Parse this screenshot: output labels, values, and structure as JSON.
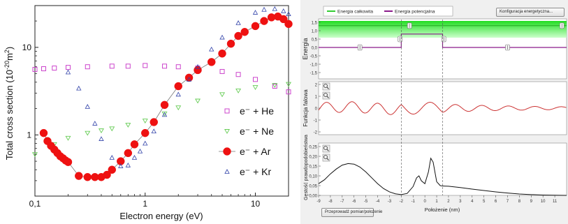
{
  "left_panel": {
    "ylabel": "Total cross section (10",
    "ylabel_exp": "-20",
    "ylabel_unit": "m",
    "ylabel_unit_exp": "2",
    "ylabel_close": ")",
    "xlabel": "Electron energy (eV)",
    "yticks": [
      "1",
      "10"
    ],
    "xticks": [
      "0,1",
      "1",
      "10"
    ]
  },
  "right_panel": {
    "legend": [
      {
        "label": "Energia całkowita",
        "color": "#33cc33"
      },
      {
        "label": "Energia potencjalna",
        "color": "#8b1a8b"
      }
    ],
    "config_button": "Konfiguracja energetyczna...",
    "measure_button": "Przeprowadź pomiar/położenie",
    "panel1": {
      "ylabel": "Energia",
      "yticks": [
        "1,5",
        "1,0",
        "0,5",
        "0,0",
        "-0,5",
        "-1,0",
        "-1,5"
      ]
    },
    "panel2": {
      "ylabel": "Funkcja falowa",
      "yticks": [
        "2",
        "1",
        "0",
        "-1",
        "-2"
      ]
    },
    "panel3": {
      "ylabel": "Gęstość prawdopodobieństwa",
      "yticks": [
        "0,25",
        "0,20",
        "0,15",
        "0,10",
        "0,05",
        "0,00"
      ]
    },
    "xticks": [
      "-9",
      "-8",
      "-7",
      "-6",
      "-5",
      "-4",
      "-3",
      "-2",
      "-1",
      "0",
      "1",
      "2",
      "3",
      "4",
      "5",
      "6",
      "7",
      "8",
      "9",
      "10",
      "11"
    ],
    "xlabel": "Położenie (nm)"
  },
  "chart_data": [
    {
      "type": "scatter",
      "title": "",
      "xlabel": "Electron energy (eV)",
      "ylabel": "Total cross section (10^-20 m^2)",
      "xscale": "log",
      "yscale": "log",
      "xlim": [
        0.1,
        20
      ],
      "ylim": [
        0.2,
        30
      ],
      "legend_position": "right",
      "series": [
        {
          "name": "e⁻ + He",
          "marker": "square",
          "color": "#cc44cc",
          "x": [
            0.1,
            0.12,
            0.15,
            0.2,
            0.3,
            0.5,
            0.7,
            1.0,
            1.5,
            2.0,
            3.0,
            5.0,
            7.0,
            10.0,
            15.0,
            20.0
          ],
          "y": [
            5.6,
            5.7,
            5.8,
            5.9,
            6.0,
            6.1,
            6.1,
            6.2,
            6.1,
            6.0,
            5.8,
            5.3,
            4.9,
            4.3,
            3.6,
            3.1
          ]
        },
        {
          "name": "e⁻ + Ne",
          "marker": "triangle-down",
          "color": "#66cc55",
          "x": [
            0.1,
            0.15,
            0.2,
            0.3,
            0.4,
            0.5,
            0.7,
            1.0,
            1.5,
            2.0,
            3.0,
            5.0,
            7.0,
            10.0,
            15.0,
            20.0
          ],
          "y": [
            0.6,
            0.78,
            0.92,
            1.05,
            1.12,
            1.18,
            1.3,
            1.45,
            1.75,
            2.05,
            2.45,
            2.9,
            3.2,
            3.5,
            3.7,
            3.8
          ]
        },
        {
          "name": "e⁻ + Ar",
          "marker": "circle",
          "color": "#ee1111",
          "line": true,
          "x": [
            0.12,
            0.13,
            0.14,
            0.15,
            0.16,
            0.17,
            0.18,
            0.19,
            0.2,
            0.25,
            0.3,
            0.35,
            0.4,
            0.45,
            0.5,
            0.6,
            0.7,
            0.8,
            1.0,
            1.2,
            1.5,
            2.0,
            2.5,
            3.0,
            4.0,
            5.0,
            6.0,
            7.0,
            8.0,
            10.0,
            12.0,
            14.0,
            16.0,
            18.0,
            20.0
          ],
          "y": [
            1.05,
            0.85,
            0.75,
            0.68,
            0.62,
            0.57,
            0.54,
            0.51,
            0.49,
            0.34,
            0.33,
            0.33,
            0.33,
            0.35,
            0.4,
            0.5,
            0.62,
            0.78,
            1.05,
            1.4,
            2.2,
            3.6,
            4.5,
            5.5,
            6.8,
            8.5,
            11.0,
            13.5,
            15.0,
            17.5,
            20.0,
            22.0,
            22.5,
            21.0,
            18.5
          ]
        },
        {
          "name": "e⁻ + Kr",
          "marker": "triangle-up",
          "color": "#3344aa",
          "x": [
            0.2,
            0.25,
            0.3,
            0.35,
            0.4,
            0.5,
            0.6,
            0.7,
            0.8,
            0.9,
            1.0,
            1.2,
            1.5,
            2.0,
            2.5,
            3.0,
            4.0,
            5.0,
            7.0,
            10.0,
            12.0,
            15.0,
            18.0,
            20.0
          ],
          "y": [
            5.2,
            3.4,
            2.1,
            1.35,
            0.9,
            0.55,
            0.44,
            0.45,
            0.55,
            0.65,
            0.8,
            1.1,
            1.7,
            2.9,
            4.3,
            6.0,
            9.5,
            13.0,
            19.0,
            25.0,
            27.0,
            27.5,
            26.0,
            24.0
          ]
        }
      ]
    },
    {
      "type": "line",
      "title": "",
      "ylabel": "Energia",
      "xlim": [
        -9,
        12
      ],
      "ylim": [
        -1.5,
        1.5
      ],
      "series": [
        {
          "name": "Energia potencjalna",
          "color": "#8b1a8b",
          "x": [
            -9,
            -2,
            -2,
            1.5,
            1.5,
            12
          ],
          "y": [
            0,
            0,
            0.8,
            0.8,
            0,
            0
          ]
        },
        {
          "name": "Energia całkowita",
          "color": "#33cc33",
          "x": [
            -9,
            12
          ],
          "y": [
            1.3,
            1.3
          ]
        }
      ]
    },
    {
      "type": "line",
      "title": "",
      "ylabel": "Funkcja falowa",
      "xlim": [
        -9,
        12
      ],
      "ylim": [
        -2,
        2
      ],
      "series": [
        {
          "name": "",
          "color": "#cc3333",
          "wave": true
        }
      ]
    },
    {
      "type": "area",
      "title": "",
      "ylabel": "Gęstość prawdopodobieństwa",
      "xlabel": "Położenie (nm)",
      "xlim": [
        -9,
        12
      ],
      "ylim": [
        0,
        0.25
      ],
      "series": [
        {
          "name": "",
          "color": "#111111",
          "x": [
            -9,
            -8.5,
            -8,
            -7.5,
            -7,
            -6.5,
            -6,
            -5.5,
            -5,
            -4.5,
            -4,
            -3.5,
            -3,
            -2.5,
            -2,
            -1.5,
            -1,
            -0.7,
            -0.5,
            -0.3,
            0,
            0.3,
            0.5,
            0.7,
            1.0,
            1.3,
            1.5,
            2,
            3,
            4,
            5,
            6,
            7,
            8,
            9,
            10,
            11,
            12
          ],
          "y": [
            0.06,
            0.08,
            0.11,
            0.135,
            0.155,
            0.163,
            0.16,
            0.145,
            0.12,
            0.09,
            0.06,
            0.035,
            0.018,
            0.008,
            0.004,
            0.01,
            0.045,
            0.09,
            0.1,
            0.075,
            0.06,
            0.12,
            0.19,
            0.17,
            0.07,
            0.05,
            0.048,
            0.047,
            0.04,
            0.032,
            0.025,
            0.018,
            0.012,
            0.007,
            0.004,
            0.002,
            0.001,
            0.0
          ]
        }
      ]
    }
  ]
}
